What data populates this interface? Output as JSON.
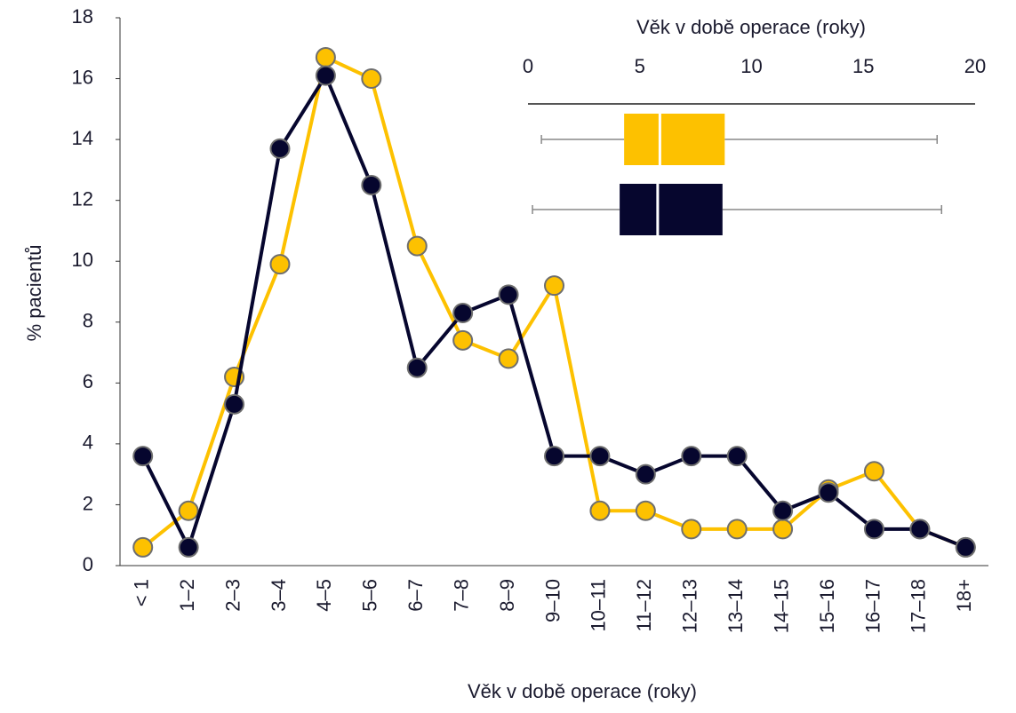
{
  "chart_data": [
    {
      "type": "line",
      "ylabel": "% pacientů",
      "xlabel": "Věk v době operace (roky)",
      "categories": [
        "< 1",
        "1–2",
        "2–3",
        "3–4",
        "4–5",
        "5–6",
        "6–7",
        "7–8",
        "8–9",
        "9–10",
        "10–11",
        "11–12",
        "12–13",
        "13–14",
        "14–15",
        "15–16",
        "16–17",
        "17–18",
        "18+"
      ],
      "series": [
        {
          "color": "#fdc100",
          "values": [
            0.6,
            1.8,
            6.2,
            9.9,
            16.7,
            16.0,
            10.5,
            7.4,
            6.8,
            9.2,
            1.8,
            1.8,
            1.2,
            1.2,
            1.2,
            2.5,
            3.1,
            1.2,
            0.6
          ]
        },
        {
          "color": "#06062e",
          "values": [
            3.6,
            0.6,
            5.3,
            13.7,
            16.1,
            12.5,
            6.5,
            8.3,
            8.9,
            3.6,
            3.6,
            3.0,
            3.6,
            3.6,
            1.8,
            2.4,
            1.2,
            1.2,
            0.6
          ]
        }
      ],
      "ylim": [
        0,
        18
      ],
      "yticks": [
        0,
        2,
        4,
        6,
        8,
        10,
        12,
        14,
        16,
        18
      ]
    },
    {
      "type": "box",
      "title": "Věk v době operace (roky)",
      "xlim": [
        0,
        20
      ],
      "xticks": [
        0,
        5,
        10,
        15,
        20
      ],
      "boxes": [
        {
          "color": "#fdc100",
          "whislo": 0.6,
          "q1": 4.3,
          "med": 5.9,
          "q3": 8.8,
          "whishi": 18.3
        },
        {
          "color": "#06062e",
          "whislo": 0.2,
          "q1": 4.1,
          "med": 5.8,
          "q3": 8.7,
          "whishi": 18.5
        }
      ]
    }
  ]
}
